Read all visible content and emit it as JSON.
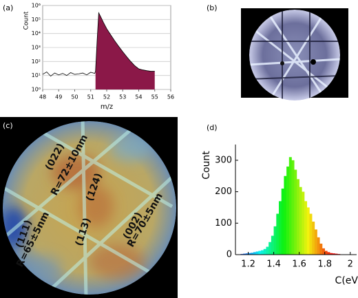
{
  "panel_labels": [
    "(a)",
    "(b)",
    "(c)",
    "(d)"
  ],
  "annotations": [
    "(022)",
    "R=72±10nm",
    "(124)",
    "(111)",
    "R=65±5nm",
    "(113)",
    "(002)",
    "R=70±5nm"
  ],
  "chart_data": [
    {
      "type": "line",
      "xlabel": "m/z",
      "ylabel": "Count",
      "x": [
        48,
        48.25,
        48.5,
        48.75,
        49,
        49.25,
        49.5,
        49.75,
        50,
        50.25,
        50.5,
        50.75,
        51,
        51.25,
        51.3,
        51.4,
        51.5,
        51.6,
        51.8,
        52,
        52.25,
        52.5,
        52.75,
        53,
        53.25,
        53.5,
        53.75,
        54,
        54.25,
        54.5,
        54.75,
        55
      ],
      "values": [
        12,
        18,
        9,
        15,
        11,
        14,
        10,
        16,
        12,
        13,
        15,
        11,
        17,
        14,
        20,
        3000,
        300000,
        180000,
        60000,
        22000,
        8000,
        3000,
        1200,
        500,
        220,
        100,
        50,
        30,
        25,
        22,
        20,
        20
      ],
      "xlim": [
        48,
        56
      ],
      "ylim": [
        1,
        1000000
      ],
      "log_y": true,
      "xticks": [
        48,
        49,
        50,
        51,
        52,
        53,
        54,
        55,
        56
      ],
      "yticks": [
        {
          "value": 1,
          "label": "10⁰"
        },
        {
          "value": 10,
          "label": "10¹"
        },
        {
          "value": 100,
          "label": "10²"
        },
        {
          "value": 1000,
          "label": "10³"
        },
        {
          "value": 10000,
          "label": "10⁴"
        },
        {
          "value": 100000,
          "label": "10⁵"
        },
        {
          "value": 1000000,
          "label": "10⁶"
        }
      ],
      "color": "#000000",
      "fill_color": "#8b1848",
      "fill_range": [
        51.3,
        55
      ],
      "grid": true
    },
    {
      "type": "histogram",
      "xlabel": "C(eV)",
      "ylabel": "Count",
      "bins": [
        1.14,
        1.16,
        1.18,
        1.2,
        1.22,
        1.24,
        1.26,
        1.28,
        1.3,
        1.32,
        1.34,
        1.36,
        1.38,
        1.4,
        1.42,
        1.44,
        1.46,
        1.48,
        1.5,
        1.52,
        1.54,
        1.56,
        1.58,
        1.6,
        1.62,
        1.64,
        1.66,
        1.68,
        1.7,
        1.72,
        1.74,
        1.76,
        1.78,
        1.8,
        1.82,
        1.84,
        1.86,
        1.88,
        1.9,
        1.92,
        1.94
      ],
      "values": [
        2,
        3,
        4,
        5,
        6,
        8,
        10,
        12,
        14,
        18,
        25,
        40,
        60,
        90,
        130,
        170,
        210,
        250,
        280,
        310,
        300,
        270,
        240,
        215,
        200,
        170,
        150,
        130,
        105,
        80,
        55,
        35,
        20,
        12,
        8,
        5,
        4,
        3,
        2,
        1
      ],
      "xlim": [
        1.1,
        2.05
      ],
      "ylim": [
        0,
        350
      ],
      "xticks": [
        1.2,
        1.4,
        1.6,
        1.8,
        2
      ],
      "yticks": [
        0,
        100,
        200,
        300
      ],
      "colormap": "jet"
    }
  ]
}
